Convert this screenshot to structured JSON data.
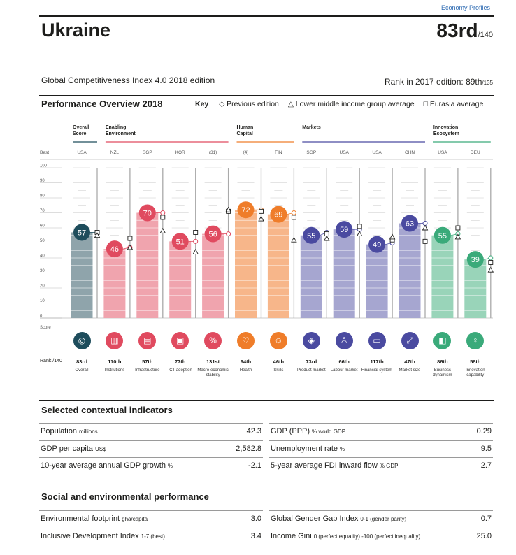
{
  "header": {
    "top_link": "Economy Profiles",
    "country": "Ukraine",
    "rank": "83rd",
    "rank_of": "/140",
    "gci_edition": "Global Competitiveness Index 4.0 2018 edition",
    "prev_rank_label": "Rank in 2017 edition: 89th",
    "prev_rank_of": "/135"
  },
  "performance": {
    "title": "Performance Overview 2018",
    "key_label": "Key",
    "key_previous": "◇ Previous edition",
    "key_lower": "△ Lower middle income group average",
    "key_eurasia": "□ Eurasia average"
  },
  "chart_data": {
    "type": "bar",
    "best_label": "Best",
    "score_label": "Score",
    "rank_label": "Rank /140",
    "ylim": [
      0,
      100
    ],
    "yticks": [
      0,
      10,
      20,
      30,
      40,
      50,
      60,
      70,
      80,
      90,
      100
    ],
    "groups": [
      {
        "line1": "Overall",
        "line2": "Score",
        "start": 0,
        "end": 0,
        "color": "#1e4d5c"
      },
      {
        "line1": "Enabling",
        "line2": "Environment",
        "start": 1,
        "end": 4,
        "color": "#e04a5f"
      },
      {
        "line1": "Human",
        "line2": "Capital",
        "start": 5,
        "end": 6,
        "color": "#ef7d2a"
      },
      {
        "line1": "Markets",
        "line2": "",
        "start": 7,
        "end": 10,
        "color": "#4a4aa0"
      },
      {
        "line1": "Innovation",
        "line2": "Ecosystem",
        "start": 11,
        "end": 12,
        "color": "#3aaa7a"
      }
    ],
    "pillars": [
      {
        "best": "USA",
        "score": 57,
        "previous": 57,
        "lower": 55,
        "eurasia": 57,
        "rank": "83rd",
        "name": "Overall",
        "color": "#1e4d5c",
        "bar": "#8fa4ab",
        "icon": "◎"
      },
      {
        "best": "NZL",
        "score": 46,
        "previous": 47,
        "lower": 47,
        "eurasia": 53,
        "rank": "110th",
        "name": "Institutions",
        "color": "#e04a5f",
        "bar": "#f0a4ae",
        "icon": "▥"
      },
      {
        "best": "SGP",
        "score": 70,
        "previous": 70,
        "lower": 58,
        "eurasia": 67,
        "rank": "57th",
        "name": "Infrastructure",
        "color": "#e04a5f",
        "bar": "#f0a4ae",
        "icon": "▤"
      },
      {
        "best": "KOR",
        "score": 51,
        "previous": 51,
        "lower": 44,
        "eurasia": 57,
        "rank": "77th",
        "name": "ICT adoption",
        "color": "#e04a5f",
        "bar": "#f0a4ae",
        "icon": "▣"
      },
      {
        "best": "(31)",
        "score": 56,
        "previous": 56,
        "lower": 72,
        "eurasia": 71,
        "rank": "131st",
        "name": "Macro-economic stability",
        "color": "#e04a5f",
        "bar": "#f0a4ae",
        "icon": "%"
      },
      {
        "best": "(4)",
        "score": 72,
        "previous": 72,
        "lower": 66,
        "eurasia": 71,
        "rank": "94th",
        "name": "Health",
        "color": "#ef7d2a",
        "bar": "#f7b68a",
        "icon": "♡"
      },
      {
        "best": "FIN",
        "score": 69,
        "previous": 70,
        "lower": 52,
        "eurasia": 67,
        "rank": "46th",
        "name": "Skills",
        "color": "#ef7d2a",
        "bar": "#f7b68a",
        "icon": "☺"
      },
      {
        "best": "SGP",
        "score": 55,
        "previous": 57,
        "lower": 53,
        "eurasia": 56,
        "rank": "73rd",
        "name": "Product market",
        "color": "#4a4aa0",
        "bar": "#a6a6d0",
        "icon": "◈"
      },
      {
        "best": "USA",
        "score": 59,
        "previous": 59,
        "lower": 56,
        "eurasia": 61,
        "rank": "66th",
        "name": "Labour market",
        "color": "#4a4aa0",
        "bar": "#a6a6d0",
        "icon": "♙"
      },
      {
        "best": "USA",
        "score": 49,
        "previous": 50,
        "lower": 54,
        "eurasia": 52,
        "rank": "117th",
        "name": "Financial system",
        "color": "#4a4aa0",
        "bar": "#a6a6d0",
        "icon": "▭"
      },
      {
        "best": "CHN",
        "score": 63,
        "previous": 63,
        "lower": 60,
        "eurasia": 51,
        "rank": "47th",
        "name": "Market size",
        "color": "#4a4aa0",
        "bar": "#a6a6d0",
        "icon": "⤢"
      },
      {
        "best": "USA",
        "score": 55,
        "previous": 56,
        "lower": 54,
        "eurasia": 60,
        "rank": "86th",
        "name": "Business dynamism",
        "color": "#3aaa7a",
        "bar": "#99d4b9",
        "icon": "◧"
      },
      {
        "best": "DEU",
        "score": 39,
        "previous": 40,
        "lower": 32,
        "eurasia": 37,
        "rank": "58th",
        "name": "Innovation capability",
        "color": "#3aaa7a",
        "bar": "#99d4b9",
        "icon": "♀"
      }
    ]
  },
  "contextual": {
    "title": "Selected contextual indicators",
    "left": [
      {
        "label": "Population",
        "unit": "millions",
        "value": "42.3"
      },
      {
        "label": "GDP per capita",
        "unit": "US$",
        "value": "2,582.8"
      },
      {
        "label": "10-year average annual GDP growth",
        "unit": "%",
        "value": "-2.1"
      }
    ],
    "right": [
      {
        "label": "GDP (PPP)",
        "unit": "% world GDP",
        "value": "0.29"
      },
      {
        "label": "Unemployment rate",
        "unit": "%",
        "value": "9.5"
      },
      {
        "label": "5-year average FDI inward flow",
        "unit": "% GDP",
        "value": "2.7"
      }
    ]
  },
  "social": {
    "title": "Social and environmental performance",
    "left": [
      {
        "label": "Environmental footprint",
        "unit": "gha/capita",
        "value": "3.0"
      },
      {
        "label": "Inclusive Development Index",
        "unit": "1-7 (best)",
        "value": "3.4"
      }
    ],
    "right": [
      {
        "label": "Global Gender Gap Index",
        "unit": "0-1 (gender parity)",
        "value": "0.7"
      },
      {
        "label": "Income Gini",
        "unit": "0 (perfect equality) -100 (perfect inequality)",
        "value": "25.0"
      }
    ]
  }
}
